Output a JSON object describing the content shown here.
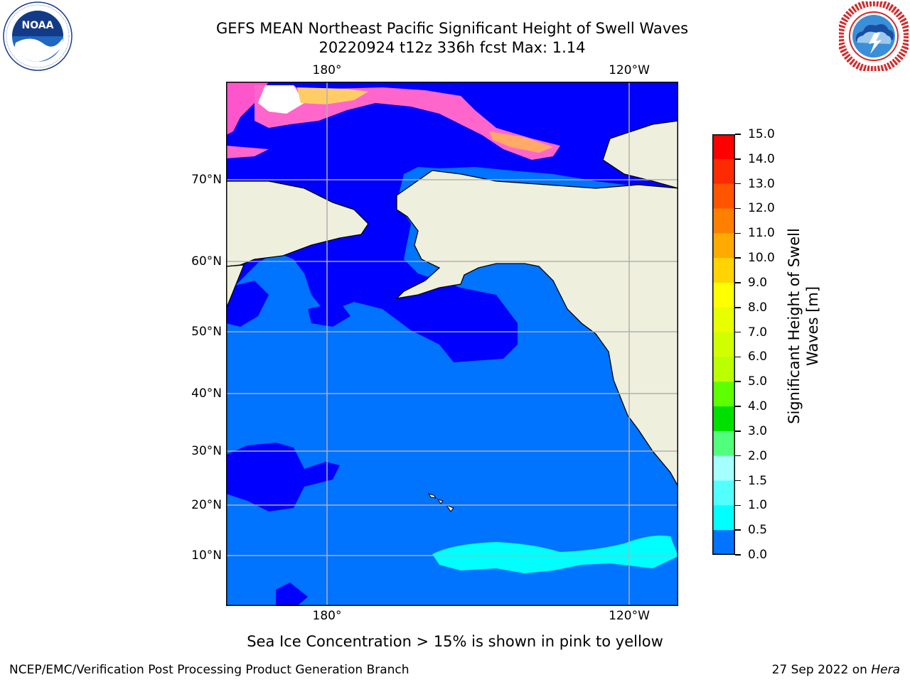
{
  "title": {
    "line1": "GEFS MEAN Northeast Pacific Significant Height of Swell Waves",
    "line2": "20220924 t12z 336h fcst   Max: 1.14"
  },
  "logos": {
    "left": {
      "name": "noaa-logo",
      "text": "NOAA",
      "ring_text": "NATIONAL OCEANIC AND ATMOSPHERIC ADMINISTRATION · U.S. DEPARTMENT OF COMMERCE"
    },
    "right": {
      "name": "nws-logo",
      "ring_text": "NATIONAL WEATHER SERVICE"
    }
  },
  "map": {
    "lon_ticks": [
      "180°",
      "120°W"
    ],
    "lat_ticks": [
      "70°N",
      "60°N",
      "50°N",
      "40°N",
      "30°N",
      "20°N",
      "10°N"
    ],
    "colors": {
      "ocean_low": "#0000ff",
      "ocean_mid": "#0073ff",
      "ocean_high": "#00ffff",
      "land": "#efefdd",
      "gridline": "#b0b0b0"
    }
  },
  "colorbar": {
    "label": "Significant Height of Swell Waves [m]",
    "label_line1": "Significant Height of Swell",
    "label_line2": "Waves [m]",
    "ticks": [
      "15.0",
      "14.0",
      "13.0",
      "12.0",
      "11.0",
      "10.0",
      "9.0",
      "8.0",
      "7.0",
      "6.0",
      "5.0",
      "4.0",
      "3.0",
      "2.0",
      "1.5",
      "1.0",
      "0.5",
      "0.0"
    ],
    "colors": [
      "#ff0000",
      "#ff2a00",
      "#ff5500",
      "#ff7f00",
      "#ffaa00",
      "#ffd400",
      "#ffff00",
      "#e8ff00",
      "#d2ff00",
      "#bbff00",
      "#5eff00",
      "#00e000",
      "#52ff7c",
      "#a5ffff",
      "#52ffff",
      "#00ffff",
      "#0073ff",
      "#0000ff"
    ]
  },
  "caption": "Sea Ice Concentration > 15% is shown in pink to yellow",
  "footer": {
    "left": "NCEP/EMC/Verification Post Processing Product Generation Branch",
    "right_prefix": "27 Sep 2022 on ",
    "right_machine": "Hera"
  }
}
